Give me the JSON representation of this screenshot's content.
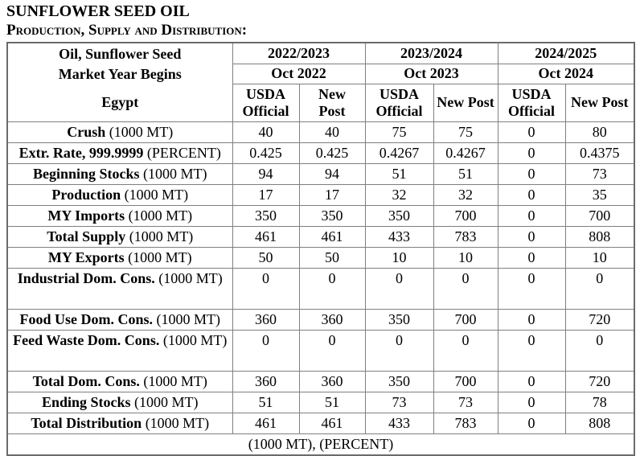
{
  "title": "SUNFLOWER SEED OIL",
  "subtitle": "Production, Supply and Distribution:",
  "colors": {
    "text": "#000000",
    "grid_border": "#7f7f7f",
    "outer_border": "#6b6b6b",
    "background": "#ffffff"
  },
  "table": {
    "commodity": {
      "line1": "Oil, Sunflower Seed",
      "line2": "Market Year Begins",
      "line3": "Egypt"
    },
    "year_groups": [
      {
        "year": "2022/2023",
        "begins": "Oct 2022",
        "columns": [
          "USDA\nOfficial",
          "New\nPost"
        ]
      },
      {
        "year": "2023/2024",
        "begins": "Oct 2023",
        "columns": [
          "USDA\nOfficial",
          "New Post"
        ]
      },
      {
        "year": "2024/2025",
        "begins": "Oct 2024",
        "columns": [
          "USDA\nOfficial",
          "New Post"
        ]
      }
    ],
    "rows": [
      {
        "label_bold": "Crush",
        "label_unit": "(1000 MT)",
        "values": [
          "40",
          "40",
          "75",
          "75",
          "0",
          "80"
        ]
      },
      {
        "label_bold": "Extr. Rate, 999.9999",
        "label_unit": "(PERCENT)",
        "values": [
          "0.425",
          "0.425",
          "0.4267",
          "0.4267",
          "0",
          "0.4375"
        ]
      },
      {
        "label_bold": "Beginning Stocks",
        "label_unit": "(1000 MT)",
        "values": [
          "94",
          "94",
          "51",
          "51",
          "0",
          "73"
        ]
      },
      {
        "label_bold": "Production",
        "label_unit": "(1000 MT)",
        "values": [
          "17",
          "17",
          "32",
          "32",
          "0",
          "35"
        ]
      },
      {
        "label_bold": "MY Imports",
        "label_unit": "(1000 MT)",
        "values": [
          "350",
          "350",
          "350",
          "700",
          "0",
          "700"
        ]
      },
      {
        "label_bold": "Total Supply",
        "label_unit": "(1000 MT)",
        "values": [
          "461",
          "461",
          "433",
          "783",
          "0",
          "808"
        ]
      },
      {
        "label_bold": "MY Exports",
        "label_unit": "(1000 MT)",
        "values": [
          "50",
          "50",
          "10",
          "10",
          "0",
          "10"
        ]
      },
      {
        "label_bold": "Industrial Dom. Cons.",
        "label_unit": "(1000 MT)",
        "values": [
          "0",
          "0",
          "0",
          "0",
          "0",
          "0"
        ]
      },
      {
        "label_bold": "Food Use Dom. Cons.",
        "label_unit": "(1000 MT)",
        "values": [
          "360",
          "360",
          "350",
          "700",
          "0",
          "720"
        ]
      },
      {
        "label_bold": "Feed Waste Dom. Cons.",
        "label_unit": "(1000 MT)",
        "values": [
          "0",
          "0",
          "0",
          "0",
          "0",
          "0"
        ]
      },
      {
        "label_bold": "Total Dom. Cons.",
        "label_unit": "(1000 MT)",
        "values": [
          "360",
          "360",
          "350",
          "700",
          "0",
          "720"
        ]
      },
      {
        "label_bold": "Ending Stocks",
        "label_unit": "(1000 MT)",
        "values": [
          "51",
          "51",
          "73",
          "73",
          "0",
          "78"
        ]
      },
      {
        "label_bold": "Total Distribution",
        "label_unit": "(1000 MT)",
        "values": [
          "461",
          "461",
          "433",
          "783",
          "0",
          "808"
        ]
      }
    ],
    "footer": "(1000 MT), (PERCENT)"
  }
}
